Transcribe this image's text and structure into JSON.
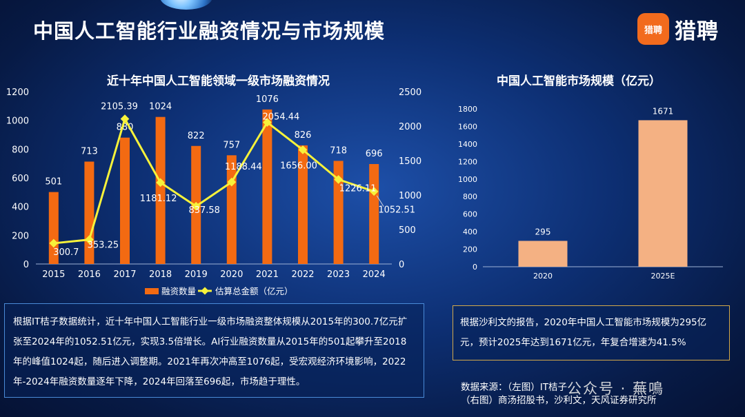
{
  "header": {
    "title": "中国人工智能行业融资情况与市场规模",
    "logo_badge": "猎聘",
    "logo_text": "猎聘"
  },
  "chart_data": [
    {
      "type": "bar",
      "title": "近十年中国人工智能领域一级市场融资情况",
      "categories": [
        "2015",
        "2016",
        "2017",
        "2018",
        "2019",
        "2020",
        "2021",
        "2022",
        "2023",
        "2024"
      ],
      "series": [
        {
          "name": "融资数量",
          "type": "bar",
          "axis": "left",
          "color": "#f36a12",
          "values": [
            501,
            713,
            880,
            1024,
            822,
            757,
            1076,
            826,
            718,
            696
          ],
          "labels": [
            "501",
            "713",
            "880",
            "1024",
            "822",
            "757",
            "1076",
            "826",
            "718",
            "696"
          ]
        },
        {
          "name": "估算总金额（亿元）",
          "type": "line",
          "axis": "right",
          "color": "#f7f23a",
          "values": [
            300.7,
            353.25,
            2105.39,
            1181.12,
            837.58,
            1188.44,
            2054.44,
            1656.0,
            1226.11,
            1052.51
          ],
          "labels": [
            "300.7",
            "353.25",
            "2105.39",
            "1181.12",
            "837.58",
            "1188.44",
            "2054.44",
            "1656.00",
            "1226.11",
            "1052.51"
          ]
        }
      ],
      "ylim_left": [
        0,
        1200
      ],
      "yticks_left": [
        0,
        200,
        400,
        600,
        800,
        1000,
        1200
      ],
      "ylim_right": [
        0,
        2500
      ],
      "yticks_right": [
        0,
        500,
        1000,
        1500,
        2000,
        2500
      ],
      "legend": "bottom",
      "grid": false
    },
    {
      "type": "bar",
      "title": "中国人工智能市场规模（亿元）",
      "categories": [
        "2020",
        "2025E"
      ],
      "values": [
        295,
        1671
      ],
      "labels": [
        "295",
        "1671"
      ],
      "color": "#f4b183",
      "ylim": [
        0,
        1800
      ],
      "yticks": [
        0,
        200,
        400,
        600,
        800,
        1000,
        1200,
        1400,
        1600,
        1800
      ],
      "grid": false
    }
  ],
  "text_left": "根据IT桔子数据统计，近十年中国人工智能行业一级市场融资整体规模从2015年的300.7亿元扩张至2024年的1052.51亿元，实现3.5倍增长。AI行业融资数量从2015年的501起攀升至2018年的峰值1024起，随后进入调整期。2021年再次冲高至1076起，受宏观经济环境影响，2022年-2024年融资数量逐年下降，2024年回落至696起，市场趋于理性。",
  "text_right": "根据沙利文的报告，2020年中国人工智能市场规模为295亿元，预计2025年达到1671亿元，年复合增速为41.5%",
  "source": {
    "line1": "数据来源：（左图）IT桔子",
    "line2": "（右图）商汤招股书，沙利文，天风证券研究所"
  },
  "watermark": "公众号 · 蕪鳴"
}
